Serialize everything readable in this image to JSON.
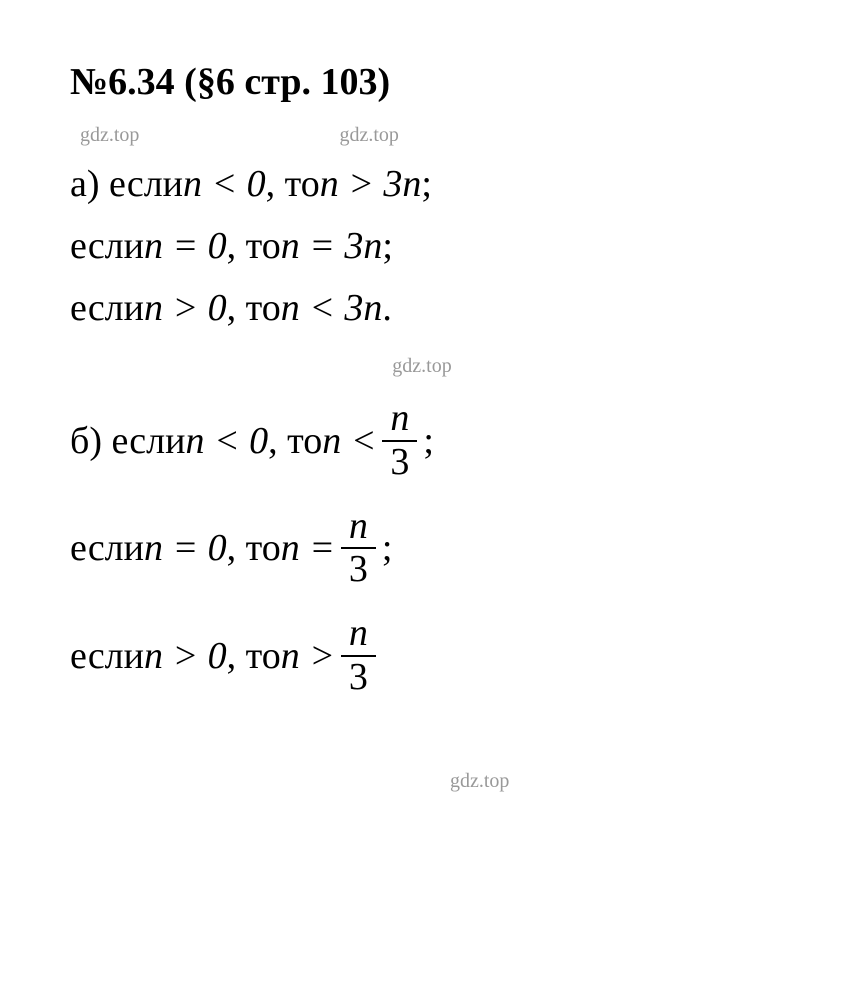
{
  "heading": "№6.34 (§6 стр. 103)",
  "watermark": "gdz.top",
  "sectionA": {
    "line1_prefix": "а) если ",
    "line1_cond": "n < 0",
    "line1_mid": ", то ",
    "line1_res": "n > 3n",
    "line1_end": ";",
    "line2_prefix": "если ",
    "line2_cond": "n = 0",
    "line2_mid": ", то ",
    "line2_res": "n = 3n",
    "line2_end": ";",
    "line3_prefix": "если ",
    "line3_cond": "n > 0",
    "line3_mid": ", то ",
    "line3_res": "n < 3n",
    "line3_end": "."
  },
  "sectionB": {
    "line1_prefix": "б) если ",
    "line1_cond": "n < 0",
    "line1_mid": ", то ",
    "line1_left": "n < ",
    "line1_end": " ;",
    "line2_prefix": "если ",
    "line2_cond": "n = 0",
    "line2_mid": ", то ",
    "line2_left": "n = ",
    "line2_end": " ;",
    "line3_prefix": "если ",
    "line3_cond": "n > 0",
    "line3_mid": ", то ",
    "line3_left": "n > ",
    "frac_num": "n",
    "frac_den": "3"
  },
  "style": {
    "font_family": "Times New Roman",
    "heading_fontsize": 38,
    "body_fontsize": 38,
    "watermark_fontsize": 20,
    "text_color": "#000000",
    "watermark_color": "#999999",
    "background_color": "#ffffff"
  }
}
